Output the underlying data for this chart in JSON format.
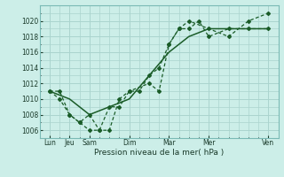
{
  "background_color": "#cceee8",
  "plot_bg_color": "#cceee8",
  "grid_color": "#aad4ce",
  "line_color": "#1a5c28",
  "xlabel": "Pression niveau de la mer( hPa )",
  "ylim": [
    1005,
    1022
  ],
  "yticks": [
    1006,
    1008,
    1010,
    1012,
    1014,
    1016,
    1018,
    1020
  ],
  "day_positions": [
    0,
    1,
    2,
    4,
    6,
    8,
    11
  ],
  "day_labels": [
    "Lun",
    "Jeu",
    "Sam",
    "Dim",
    "Mar",
    "Mer",
    "Ven"
  ],
  "series1_x": [
    0,
    0.5,
    1.0,
    1.5,
    2.0,
    2.5,
    3.0,
    3.5,
    4.0,
    4.5,
    5.0,
    5.5,
    6.0,
    6.5,
    7.0,
    8.0,
    9.0,
    10.0,
    11.0
  ],
  "series1_y": [
    1011,
    1010,
    1008,
    1007,
    1006,
    1006,
    1009,
    1009,
    1011,
    1011,
    1013,
    1014,
    1017,
    1019,
    1020,
    1019,
    1018,
    1020,
    1021
  ],
  "series2_x": [
    0,
    0.5,
    1.0,
    1.5,
    2.0,
    2.5,
    3.0,
    3.5,
    4.0,
    5.0,
    5.5,
    6.0,
    6.5,
    7.0,
    7.5,
    8.0,
    9.0,
    10.0,
    11.0
  ],
  "series2_y": [
    1011,
    1011,
    1008,
    1007,
    1008,
    1006,
    1006,
    1010,
    1011,
    1012,
    1011,
    1017,
    1019,
    1019,
    1020,
    1018,
    1019,
    1019,
    1019
  ],
  "series3_x": [
    0,
    1,
    2,
    3,
    4,
    5,
    6,
    7,
    8,
    9,
    10,
    11
  ],
  "series3_y": [
    1011,
    1010,
    1008,
    1009,
    1010,
    1013,
    1016,
    1018,
    1019,
    1019,
    1019,
    1019
  ]
}
